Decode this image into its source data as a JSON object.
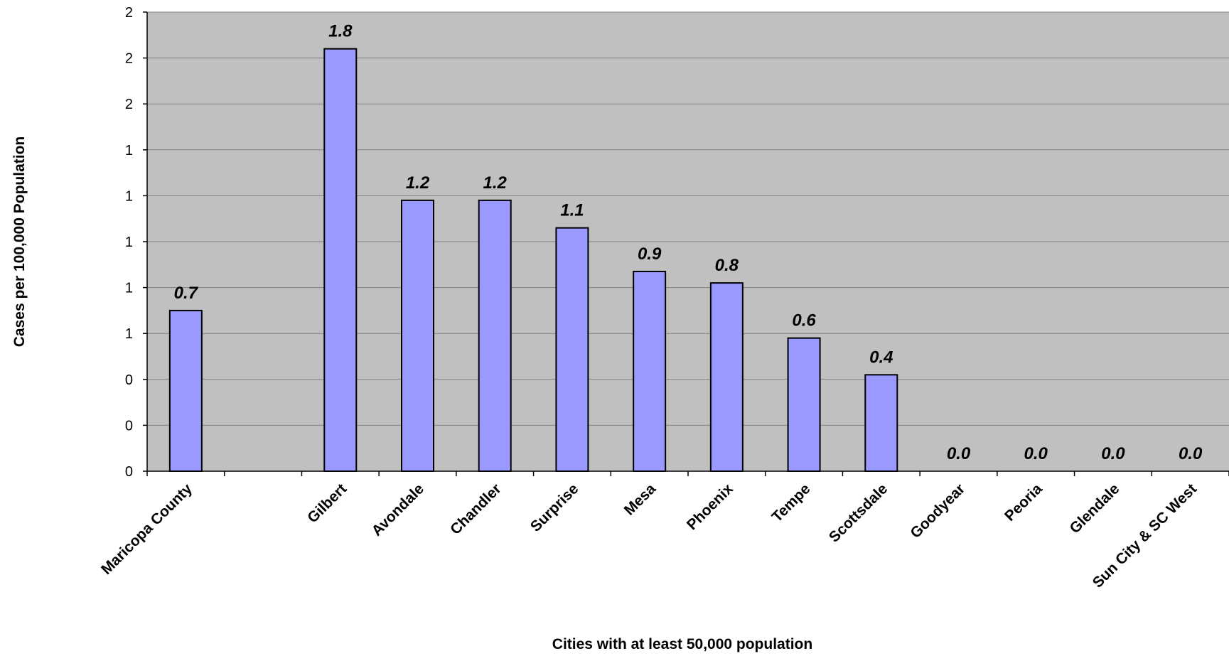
{
  "chart_data": {
    "type": "bar",
    "title": "",
    "xlabel": "Cities with at least 50,000 population",
    "ylabel": "Cases per 100,000 Population",
    "ylim": [
      0,
      2
    ],
    "y_ticks": [
      {
        "value": 0,
        "label": "0"
      },
      {
        "value": 0.2,
        "label": "0"
      },
      {
        "value": 0.4,
        "label": "0"
      },
      {
        "value": 0.6,
        "label": "1"
      },
      {
        "value": 0.8,
        "label": "1"
      },
      {
        "value": 1.0,
        "label": "1"
      },
      {
        "value": 1.2,
        "label": "1"
      },
      {
        "value": 1.4,
        "label": "1"
      },
      {
        "value": 1.6,
        "label": "2"
      },
      {
        "value": 1.8,
        "label": "2"
      },
      {
        "value": 2.0,
        "label": "2"
      }
    ],
    "categories": [
      "Maricopa County",
      "",
      "Gilbert",
      "Avondale",
      "Chandler",
      "Surprise",
      "Mesa",
      "Phoenix",
      "Tempe",
      "Scottsdale",
      "Goodyear",
      "Peoria",
      "Glendale",
      "Sun City & SC West"
    ],
    "values": [
      0.7,
      null,
      1.84,
      1.18,
      1.18,
      1.06,
      0.87,
      0.82,
      0.58,
      0.42,
      0.0,
      0.0,
      0.0,
      0.0
    ],
    "data_labels": [
      "0.7",
      "",
      "1.8",
      "1.2",
      "1.2",
      "1.1",
      "0.9",
      "0.8",
      "0.6",
      "0.4",
      "0.0",
      "0.0",
      "0.0",
      "0.0"
    ],
    "grid": true,
    "legend": "none",
    "colors": {
      "plot_background": "#c0c0c0",
      "bar_fill": "#9999ff",
      "bar_stroke": "#000000",
      "gridline": "#808080"
    }
  }
}
